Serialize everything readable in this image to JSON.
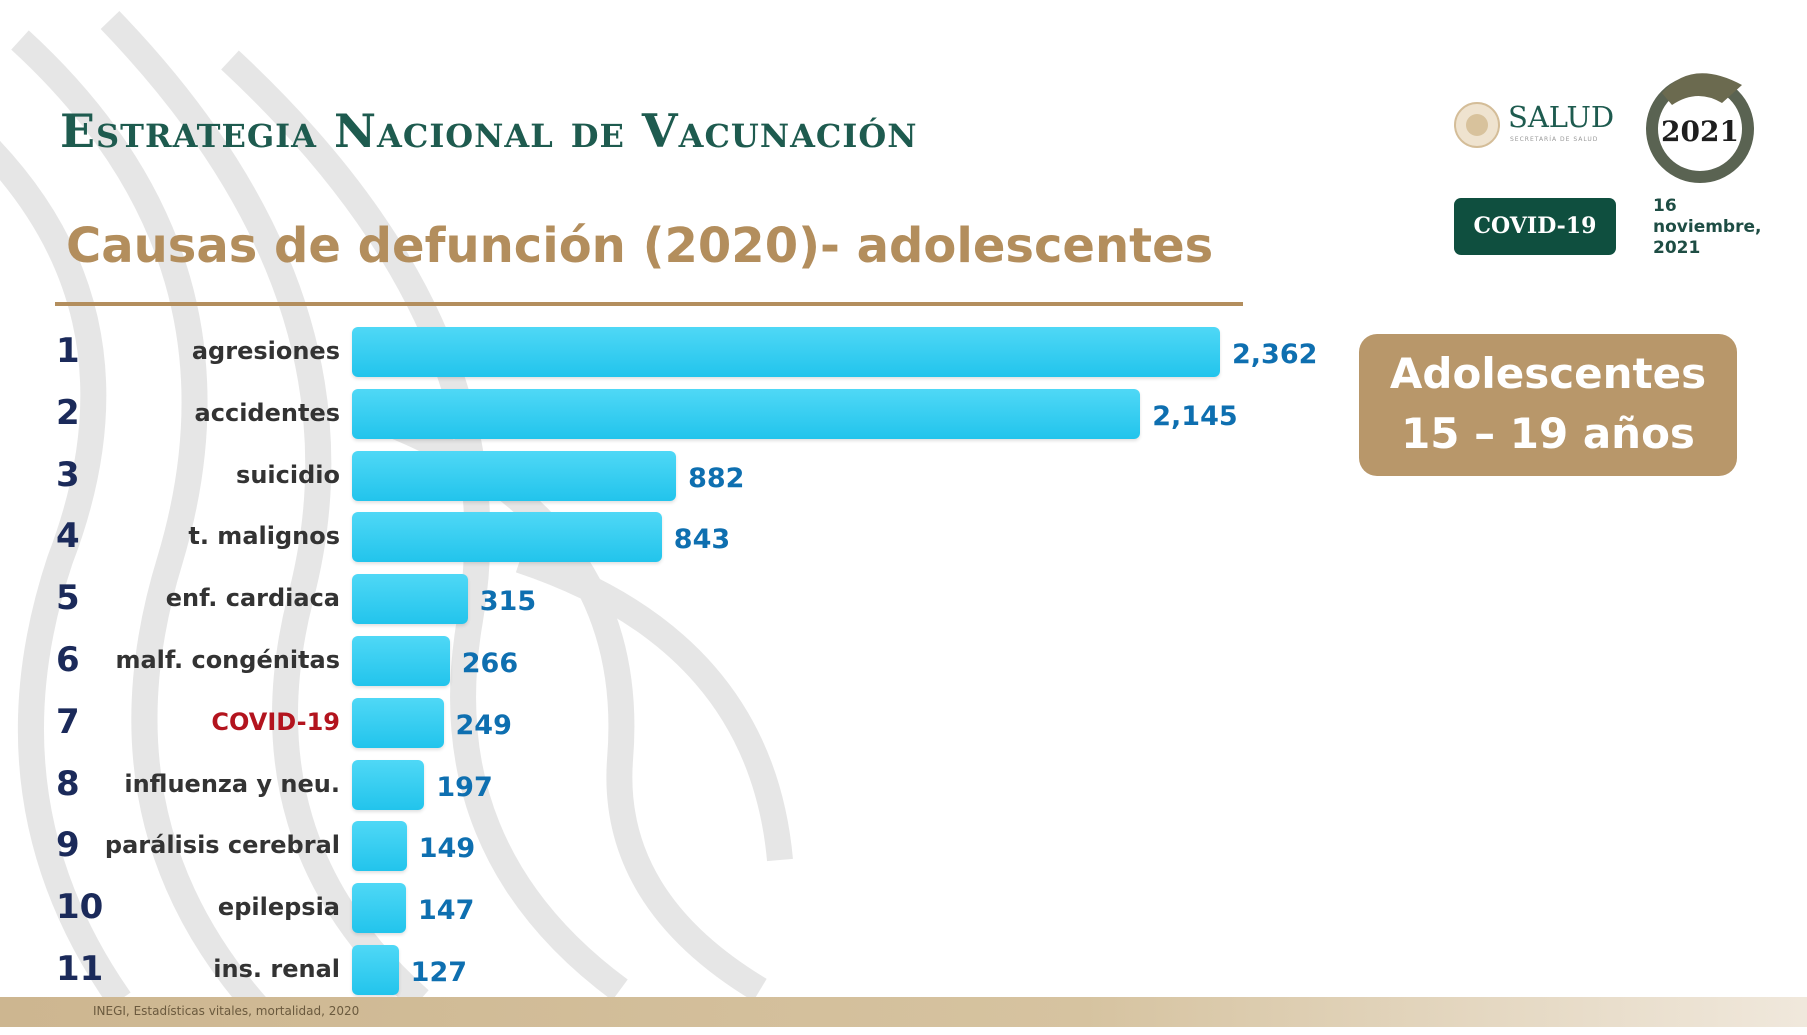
{
  "header": {
    "title": "Estrategia Nacional de Vacunación",
    "subtitle": "Causas de defunción (2020)- adolescentes"
  },
  "logos": {
    "salud": "SALUD",
    "salud_sub": "SECRETARÍA DE SALUD",
    "mexico": "México 2021"
  },
  "badge": {
    "covid": "COVID-19",
    "date_line1": "16",
    "date_line2": "noviembre,",
    "date_line3": "2021"
  },
  "age_box": {
    "line1": "Adolescentes",
    "line2": "15 – 19 años"
  },
  "footer": {
    "source": "INEGI, Estadísticas vitales, mortalidad, 2020"
  },
  "colors": {
    "title": "#1e5b4f",
    "subtitle": "#b38e5d",
    "bar": "#2ccdf0",
    "value": "#0e6fb0",
    "rank": "#1b2a5a",
    "highlight": "#b3141e",
    "badge": "#0f4f3f",
    "age_box": "#b8976a"
  },
  "chart_data": {
    "type": "bar",
    "orientation": "horizontal",
    "title": "Causas de defunción (2020)- adolescentes",
    "ranks": [
      "1",
      "2",
      "3",
      "4",
      "5",
      "6",
      "7",
      "8",
      "9",
      "10",
      "11"
    ],
    "categories": [
      "agresiones",
      "accidentes",
      "suicidio",
      "t. malignos",
      "enf. cardiaca",
      "malf. congénitas",
      "COVID-19",
      "influenza y neu.",
      "parálisis cerebral",
      "epilepsia",
      "ins. renal"
    ],
    "values": [
      2362,
      2145,
      882,
      843,
      315,
      266,
      249,
      197,
      149,
      147,
      127
    ],
    "value_labels": [
      "2,362",
      "2,145",
      "882",
      "843",
      "315",
      "266",
      "249",
      "197",
      "149",
      "147",
      "127"
    ],
    "highlight": "COVID-19"
  }
}
